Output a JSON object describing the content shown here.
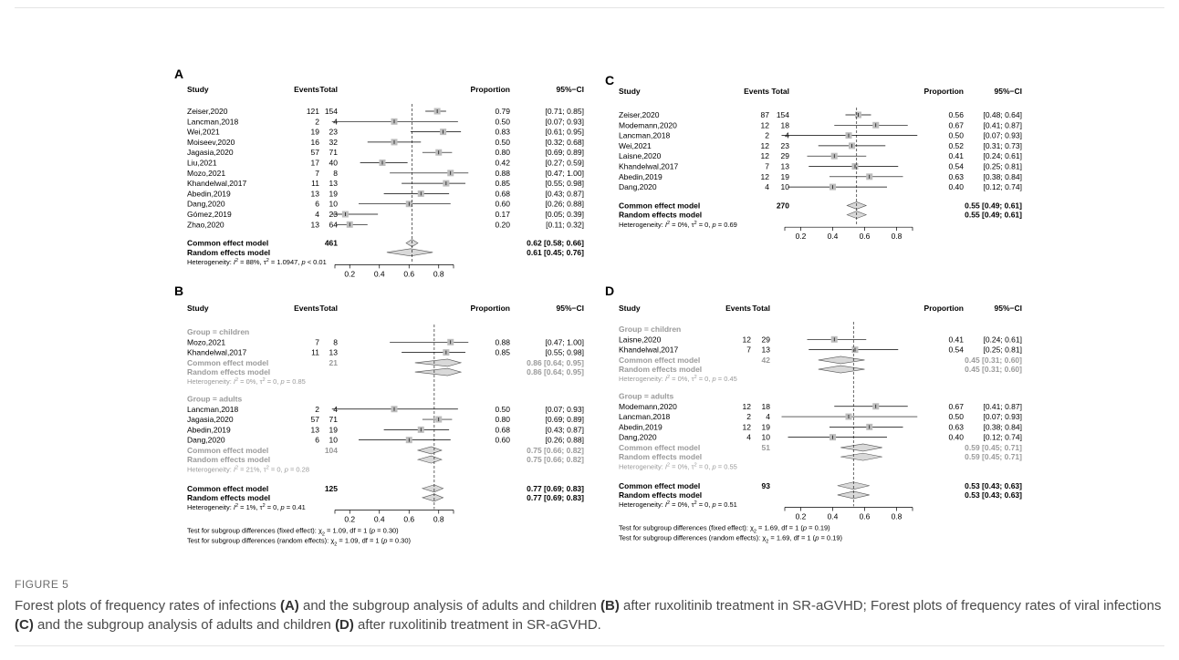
{
  "figure": {
    "label": "FIGURE 5",
    "caption": [
      {
        "t": "Forest plots of frequency rates of infections "
      },
      {
        "t": "(A)",
        "b": true
      },
      {
        "t": " and the subgroup analysis of adults and children "
      },
      {
        "t": "(B)",
        "b": true
      },
      {
        "t": " after ruxolitinib treatment in SR-aGVHD; Forest plots of frequency rates of viral infections "
      },
      {
        "t": "(C)",
        "b": true
      },
      {
        "t": " and the subgroup analysis of adults and children "
      },
      {
        "t": "(D)",
        "b": true
      },
      {
        "t": " after ruxolitinib treatment in SR-aGVHD."
      }
    ]
  },
  "chart_data": [
    {
      "type": "forest",
      "panel": "A",
      "header": {
        "study": "Study",
        "events": "Events",
        "total": "Total",
        "proportion": "Proportion",
        "ci": "95%−CI"
      },
      "xlim": [
        0.1,
        0.9
      ],
      "ticks": [
        0.2,
        0.4,
        0.6,
        0.8
      ],
      "tick_labels": [
        "0.2",
        "0.4",
        "0.6",
        "0.8"
      ],
      "reference": 0.62,
      "studies": [
        {
          "study": "Zeiser,2020",
          "events": "121",
          "total": "154",
          "prop": 0.79,
          "lo": 0.71,
          "hi": 0.85,
          "label": "0.79",
          "ci": "[0.71; 0.85]"
        },
        {
          "study": "Lancman,2018",
          "events": "2",
          "total": "4",
          "prop": 0.5,
          "lo": 0.07,
          "hi": 0.93,
          "label": "0.50",
          "ci": "[0.07; 0.93]"
        },
        {
          "study": "Wei,2021",
          "events": "19",
          "total": "23",
          "prop": 0.83,
          "lo": 0.61,
          "hi": 0.95,
          "label": "0.83",
          "ci": "[0.61; 0.95]"
        },
        {
          "study": "Moiseev,2020",
          "events": "16",
          "total": "32",
          "prop": 0.5,
          "lo": 0.32,
          "hi": 0.68,
          "label": "0.50",
          "ci": "[0.32; 0.68]"
        },
        {
          "study": "Jagasia,2020",
          "events": "57",
          "total": "71",
          "prop": 0.8,
          "lo": 0.69,
          "hi": 0.89,
          "label": "0.80",
          "ci": "[0.69; 0.89]"
        },
        {
          "study": "Liu,2021",
          "events": "17",
          "total": "40",
          "prop": 0.42,
          "lo": 0.27,
          "hi": 0.59,
          "label": "0.42",
          "ci": "[0.27; 0.59]"
        },
        {
          "study": "Mozo,2021",
          "events": "7",
          "total": "8",
          "prop": 0.88,
          "lo": 0.47,
          "hi": 1.0,
          "label": "0.88",
          "ci": "[0.47; 1.00]"
        },
        {
          "study": "Khandelwal,2017",
          "events": "11",
          "total": "13",
          "prop": 0.85,
          "lo": 0.55,
          "hi": 0.98,
          "label": "0.85",
          "ci": "[0.55; 0.98]"
        },
        {
          "study": "Abedin,2019",
          "events": "13",
          "total": "19",
          "prop": 0.68,
          "lo": 0.43,
          "hi": 0.87,
          "label": "0.68",
          "ci": "[0.43; 0.87]"
        },
        {
          "study": "Dang,2020",
          "events": "6",
          "total": "10",
          "prop": 0.6,
          "lo": 0.26,
          "hi": 0.88,
          "label": "0.60",
          "ci": "[0.26; 0.88]"
        },
        {
          "study": "Gómez,2019",
          "events": "4",
          "total": "23",
          "prop": 0.17,
          "lo": 0.05,
          "hi": 0.39,
          "label": "0.17",
          "ci": "[0.05; 0.39]"
        },
        {
          "study": "Zhao,2020",
          "events": "13",
          "total": "64",
          "prop": 0.2,
          "lo": 0.11,
          "hi": 0.32,
          "label": "0.20",
          "ci": "[0.11; 0.32]"
        }
      ],
      "common": {
        "label": "Common effect model",
        "total": "461",
        "est": 0.62,
        "lo": 0.58,
        "hi": 0.66,
        "text": "0.62 [0.58; 0.66]"
      },
      "random": {
        "label": "Random effects model",
        "est": 0.61,
        "lo": 0.45,
        "hi": 0.76,
        "text": "0.61 [0.45; 0.76]"
      },
      "heterogeneity": {
        "prefix": "Heterogeneity: ",
        "i2": "= 88%,",
        "tau2": "= 1.0947,",
        "p": "< 0.01"
      }
    },
    {
      "type": "forest",
      "panel": "B",
      "header": {
        "study": "Study",
        "events": "Events",
        "total": "Total",
        "proportion": "Proportion",
        "ci": "95%−CI"
      },
      "xlim": [
        0.1,
        0.9
      ],
      "ticks": [
        0.2,
        0.4,
        0.6,
        0.8
      ],
      "tick_labels": [
        "0.2",
        "0.4",
        "0.6",
        "0.8"
      ],
      "reference": 0.77,
      "groups": [
        {
          "title": "Group = children",
          "studies": [
            {
              "study": "Mozo,2021",
              "events": "7",
              "total": "8",
              "prop": 0.88,
              "lo": 0.47,
              "hi": 1.0,
              "label": "0.88",
              "ci": "[0.47; 1.00]"
            },
            {
              "study": "Khandelwal,2017",
              "events": "11",
              "total": "13",
              "prop": 0.85,
              "lo": 0.55,
              "hi": 0.98,
              "label": "0.85",
              "ci": "[0.55; 0.98]"
            }
          ],
          "common": {
            "label": "Common effect model",
            "total": "21",
            "est": 0.86,
            "lo": 0.64,
            "hi": 0.95,
            "text": "0.86 [0.64; 0.95]"
          },
          "random": {
            "label": "Random effects model",
            "est": 0.86,
            "lo": 0.64,
            "hi": 0.95,
            "text": "0.86 [0.64; 0.95]"
          },
          "heterogeneity": {
            "prefix": "Heterogeneity: ",
            "i2": "= 0%,",
            "tau2": "= 0,",
            "p": "= 0.85"
          }
        },
        {
          "title": "Group = adults",
          "studies": [
            {
              "study": "Lancman,2018",
              "events": "2",
              "total": "4",
              "prop": 0.5,
              "lo": 0.07,
              "hi": 0.93,
              "label": "0.50",
              "ci": "[0.07; 0.93]"
            },
            {
              "study": "Jagasia,2020",
              "events": "57",
              "total": "71",
              "prop": 0.8,
              "lo": 0.69,
              "hi": 0.89,
              "label": "0.80",
              "ci": "[0.69; 0.89]"
            },
            {
              "study": "Abedin,2019",
              "events": "13",
              "total": "19",
              "prop": 0.68,
              "lo": 0.43,
              "hi": 0.87,
              "label": "0.68",
              "ci": "[0.43; 0.87]"
            },
            {
              "study": "Dang,2020",
              "events": "6",
              "total": "10",
              "prop": 0.6,
              "lo": 0.26,
              "hi": 0.88,
              "label": "0.60",
              "ci": "[0.26; 0.88]"
            }
          ],
          "common": {
            "label": "Common effect model",
            "total": "104",
            "est": 0.75,
            "lo": 0.66,
            "hi": 0.82,
            "text": "0.75 [0.66; 0.82]"
          },
          "random": {
            "label": "Random effects model",
            "est": 0.75,
            "lo": 0.66,
            "hi": 0.82,
            "text": "0.75 [0.66; 0.82]"
          },
          "heterogeneity": {
            "prefix": "Heterogeneity: ",
            "i2": "= 21%,",
            "tau2": "= 0,",
            "p": "= 0.28"
          }
        }
      ],
      "common": {
        "label": "Common effect model",
        "total": "125",
        "est": 0.77,
        "lo": 0.69,
        "hi": 0.83,
        "text": "0.77 [0.69; 0.83]"
      },
      "random": {
        "label": "Random effects model",
        "est": 0.77,
        "lo": 0.69,
        "hi": 0.83,
        "text": "0.77 [0.69; 0.83]"
      },
      "heterogeneity": {
        "prefix": "Heterogeneity: ",
        "i2": "= 1%,",
        "tau2": "= 0,",
        "p": "= 0.41"
      },
      "subgroup_tests": [
        {
          "text": "Test for subgroup differences (fixed effect):",
          "stat": "= 1.09, df = 1 (",
          "p": "= 0.30)"
        },
        {
          "text": "Test for subgroup differences (random effects):",
          "stat": "= 1.09, df = 1 (",
          "p": "= 0.30)"
        }
      ]
    },
    {
      "type": "forest",
      "panel": "C",
      "header": {
        "study": "Study",
        "events": "Events",
        "total": "Total",
        "proportion": "Proportion",
        "ci": "95%−CI"
      },
      "xlim": [
        0.1,
        0.9
      ],
      "ticks": [
        0.2,
        0.4,
        0.6,
        0.8
      ],
      "tick_labels": [
        "0.2",
        "0.4",
        "0.6",
        "0.8"
      ],
      "reference": 0.55,
      "studies": [
        {
          "study": "Zeiser,2020",
          "events": "87",
          "total": "154",
          "prop": 0.56,
          "lo": 0.48,
          "hi": 0.64,
          "label": "0.56",
          "ci": "[0.48; 0.64]"
        },
        {
          "study": "Modemann,2020",
          "events": "12",
          "total": "18",
          "prop": 0.67,
          "lo": 0.41,
          "hi": 0.87,
          "label": "0.67",
          "ci": "[0.41; 0.87]"
        },
        {
          "study": "Lancman,2018",
          "events": "2",
          "total": "4",
          "prop": 0.5,
          "lo": 0.07,
          "hi": 0.93,
          "label": "0.50",
          "ci": "[0.07; 0.93]"
        },
        {
          "study": "Wei,2021",
          "events": "12",
          "total": "23",
          "prop": 0.52,
          "lo": 0.31,
          "hi": 0.73,
          "label": "0.52",
          "ci": "[0.31; 0.73]"
        },
        {
          "study": "Laisne,2020",
          "events": "12",
          "total": "29",
          "prop": 0.41,
          "lo": 0.24,
          "hi": 0.61,
          "label": "0.41",
          "ci": "[0.24; 0.61]"
        },
        {
          "study": "Khandelwal,2017",
          "events": "7",
          "total": "13",
          "prop": 0.54,
          "lo": 0.25,
          "hi": 0.81,
          "label": "0.54",
          "ci": "[0.25; 0.81]"
        },
        {
          "study": "Abedin,2019",
          "events": "12",
          "total": "19",
          "prop": 0.63,
          "lo": 0.38,
          "hi": 0.84,
          "label": "0.63",
          "ci": "[0.38; 0.84]"
        },
        {
          "study": "Dang,2020",
          "events": "4",
          "total": "10",
          "prop": 0.4,
          "lo": 0.12,
          "hi": 0.74,
          "label": "0.40",
          "ci": "[0.12; 0.74]"
        }
      ],
      "common": {
        "label": "Common effect model",
        "total": "270",
        "est": 0.55,
        "lo": 0.49,
        "hi": 0.61,
        "text": "0.55 [0.49; 0.61]"
      },
      "random": {
        "label": "Random effects model",
        "est": 0.55,
        "lo": 0.49,
        "hi": 0.61,
        "text": "0.55 [0.49; 0.61]"
      },
      "heterogeneity": {
        "prefix": "Heterogeneity: ",
        "i2": "= 0%,",
        "tau2": "= 0,",
        "p": "= 0.69"
      }
    },
    {
      "type": "forest",
      "panel": "D",
      "header": {
        "study": "Study",
        "events": "Events",
        "total": "Total",
        "proportion": "Proportion",
        "ci": "95%−CI"
      },
      "xlim": [
        0.1,
        0.9
      ],
      "ticks": [
        0.2,
        0.4,
        0.6,
        0.8
      ],
      "tick_labels": [
        "0.2",
        "0.4",
        "0.6",
        "0.8"
      ],
      "reference": 0.53,
      "groups": [
        {
          "title": "Group = children",
          "studies": [
            {
              "study": "Laisne,2020",
              "events": "12",
              "total": "29",
              "prop": 0.41,
              "lo": 0.24,
              "hi": 0.61,
              "label": "0.41",
              "ci": "[0.24; 0.61]"
            },
            {
              "study": "Khandelwal,2017",
              "events": "7",
              "total": "13",
              "prop": 0.54,
              "lo": 0.25,
              "hi": 0.81,
              "label": "0.54",
              "ci": "[0.25; 0.81]"
            }
          ],
          "common": {
            "label": "Common effect model",
            "total": "42",
            "est": 0.45,
            "lo": 0.31,
            "hi": 0.6,
            "text": "0.45 [0.31; 0.60]"
          },
          "random": {
            "label": "Random effects model",
            "est": 0.45,
            "lo": 0.31,
            "hi": 0.6,
            "text": "0.45 [0.31; 0.60]"
          },
          "heterogeneity": {
            "prefix": "Heterogeneity: ",
            "i2": "= 0%,",
            "tau2": "= 0,",
            "p": "= 0.45"
          }
        },
        {
          "title": "Group = adults",
          "studies": [
            {
              "study": "Modemann,2020",
              "events": "12",
              "total": "18",
              "prop": 0.67,
              "lo": 0.41,
              "hi": 0.87,
              "label": "0.67",
              "ci": "[0.41; 0.87]"
            },
            {
              "study": "Lancman,2018",
              "events": "2",
              "total": "4",
              "prop": 0.5,
              "lo": 0.07,
              "hi": 0.93,
              "label": "0.50",
              "ci": "[0.07; 0.93]"
            },
            {
              "study": "Abedin,2019",
              "events": "12",
              "total": "19",
              "prop": 0.63,
              "lo": 0.38,
              "hi": 0.84,
              "label": "0.63",
              "ci": "[0.38; 0.84]"
            },
            {
              "study": "Dang,2020",
              "events": "4",
              "total": "10",
              "prop": 0.4,
              "lo": 0.12,
              "hi": 0.74,
              "label": "0.40",
              "ci": "[0.12; 0.74]"
            }
          ],
          "common": {
            "label": "Common effect model",
            "total": "51",
            "est": 0.59,
            "lo": 0.45,
            "hi": 0.71,
            "text": "0.59 [0.45; 0.71]"
          },
          "random": {
            "label": "Random effects model",
            "est": 0.59,
            "lo": 0.45,
            "hi": 0.71,
            "text": "0.59 [0.45; 0.71]"
          },
          "heterogeneity": {
            "prefix": "Heterogeneity: ",
            "i2": "= 0%,",
            "tau2": "= 0,",
            "p": "= 0.55"
          }
        }
      ],
      "common": {
        "label": "Common effect model",
        "total": "93",
        "est": 0.53,
        "lo": 0.43,
        "hi": 0.63,
        "text": "0.53 [0.43; 0.63]"
      },
      "random": {
        "label": "Random effects model",
        "est": 0.53,
        "lo": 0.43,
        "hi": 0.63,
        "text": "0.53 [0.43; 0.63]"
      },
      "heterogeneity": {
        "prefix": "Heterogeneity: ",
        "i2": "= 0%,",
        "tau2": "= 0,",
        "p": "= 0.51"
      },
      "subgroup_tests": [
        {
          "text": "Test for subgroup differences (fixed effect):",
          "stat": "= 1.69, df = 1 (",
          "p": "= 0.19)"
        },
        {
          "text": "Test for subgroup differences (random effects):",
          "stat": "= 1.69, df = 1 (",
          "p": "= 0.19)"
        }
      ]
    }
  ]
}
